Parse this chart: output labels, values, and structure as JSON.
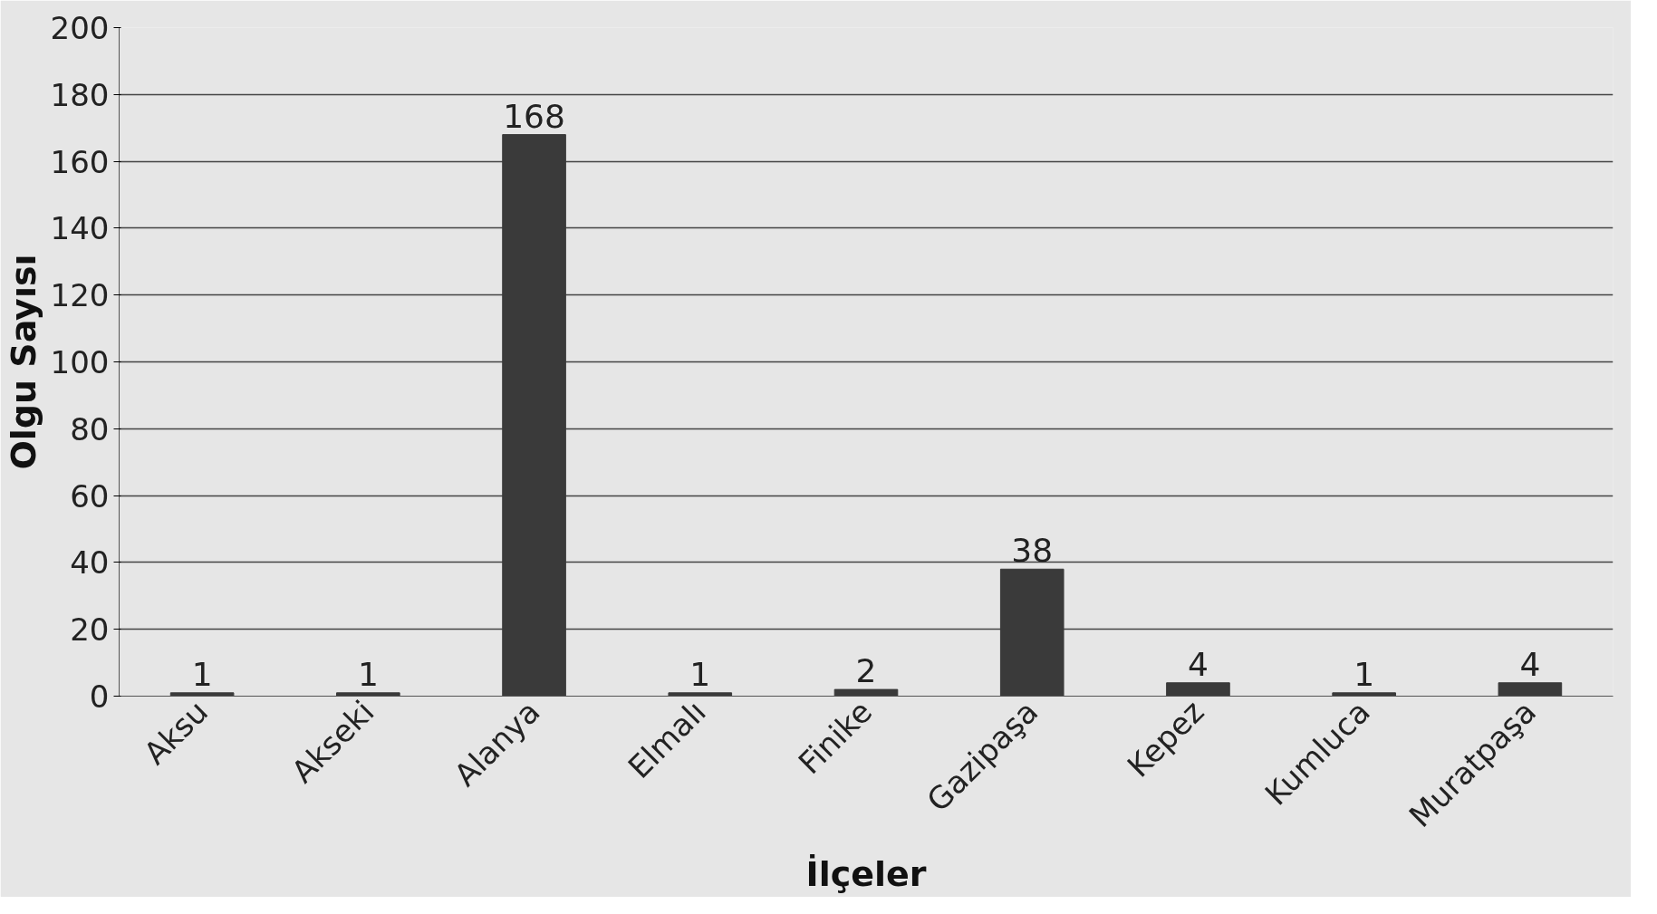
{
  "chart_data": {
    "type": "bar",
    "xlabel": "İlçeler",
    "ylabel": "Olgu Sayısı",
    "categories": [
      "Aksu",
      "Akseki",
      "Alanya",
      "Elmalı",
      "Finike",
      "Gazipaşa",
      "Kepez",
      "Kumluca",
      "Muratpaşa"
    ],
    "values": [
      1,
      1,
      168,
      1,
      2,
      38,
      4,
      1,
      4
    ],
    "color": "#3a3a3a",
    "ylim": [
      0,
      200
    ],
    "yticks": [
      0,
      20,
      40,
      60,
      80,
      100,
      120,
      140,
      160,
      180,
      200
    ],
    "grid": "y",
    "data_labels": true
  }
}
